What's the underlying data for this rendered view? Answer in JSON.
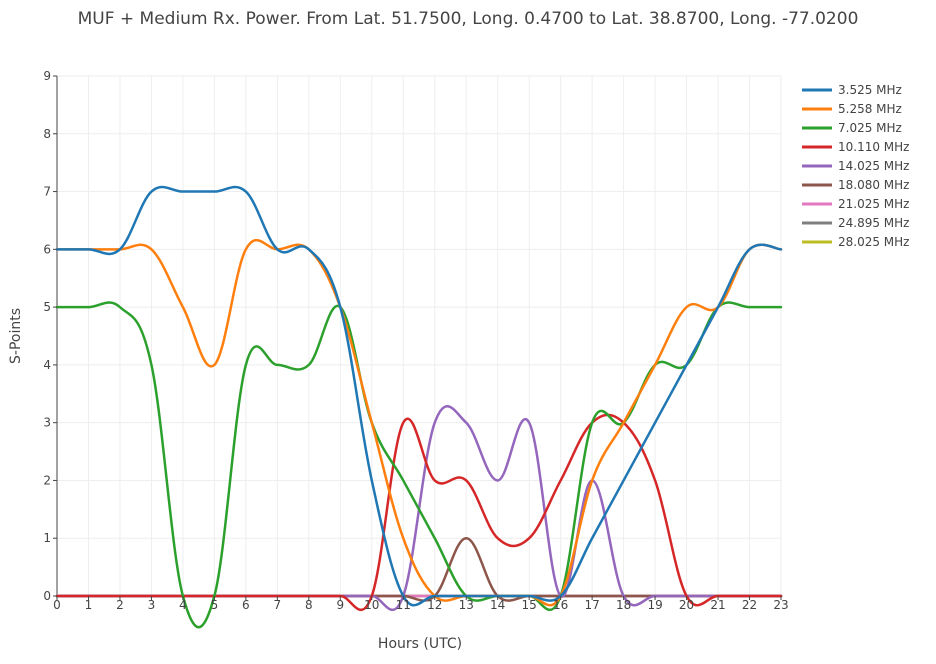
{
  "chart_data": {
    "type": "line",
    "title": "MUF + Medium Rx. Power. From Lat. 51.7500, Long. 0.4700 to Lat. 38.8700, Long. -77.0200",
    "xlabel": "Hours (UTC)",
    "ylabel": "S-Points",
    "xlim": [
      0,
      23
    ],
    "ylim": [
      0,
      9
    ],
    "grid": true,
    "legend_position": "right",
    "x": [
      0,
      1,
      2,
      3,
      4,
      5,
      6,
      7,
      8,
      9,
      10,
      11,
      12,
      13,
      14,
      15,
      16,
      17,
      18,
      19,
      20,
      21,
      22,
      23
    ],
    "series": [
      {
        "name": "3.525 MHz",
        "color": "#1f77b4",
        "values": [
          6,
          6,
          6,
          7,
          7,
          7,
          7,
          6,
          6,
          5,
          2,
          0,
          0,
          0,
          0,
          0,
          0,
          1,
          2,
          3,
          4,
          5,
          6,
          6
        ]
      },
      {
        "name": "5.258 MHz",
        "color": "#ff7f0e",
        "values": [
          6,
          6,
          6,
          6,
          5,
          4,
          6,
          6,
          6,
          5,
          3,
          1,
          0,
          0,
          0,
          0,
          0,
          2,
          3,
          4,
          5,
          5,
          6,
          6
        ]
      },
      {
        "name": "7.025 MHz",
        "color": "#2ca02c",
        "values": [
          5,
          5,
          5,
          4,
          0,
          0,
          4,
          4,
          4,
          5,
          3,
          2,
          1,
          0,
          0,
          0,
          0,
          3,
          3,
          4,
          4,
          5,
          5,
          5
        ]
      },
      {
        "name": "10.110 MHz",
        "color": "#d62728",
        "values": [
          0,
          0,
          0,
          0,
          0,
          0,
          0,
          0,
          0,
          0,
          0,
          3,
          2,
          2,
          1,
          1,
          2,
          3,
          3,
          2,
          0,
          0,
          0,
          0
        ]
      },
      {
        "name": "14.025 MHz",
        "color": "#9467bd",
        "values": [
          0,
          0,
          0,
          0,
          0,
          0,
          0,
          0,
          0,
          0,
          0,
          0,
          3,
          3,
          2,
          3,
          0,
          2,
          0,
          0,
          0,
          0,
          0,
          0
        ]
      },
      {
        "name": "18.080 MHz",
        "color": "#8c564b",
        "values": [
          0,
          0,
          0,
          0,
          0,
          0,
          0,
          0,
          0,
          0,
          0,
          0,
          0,
          1,
          0,
          0,
          0,
          0,
          0,
          0,
          0,
          0,
          0,
          0
        ]
      },
      {
        "name": "21.025 MHz",
        "color": "#e377c2",
        "values": [
          0,
          0,
          0,
          0,
          0,
          0,
          0,
          0,
          0,
          0,
          0,
          0,
          0,
          0,
          0,
          0,
          0,
          0,
          0,
          0,
          0,
          0,
          0,
          0
        ]
      },
      {
        "name": "24.895 MHz",
        "color": "#7f7f7f",
        "values": [
          0,
          0,
          0,
          0,
          0,
          0,
          0,
          0,
          0,
          0,
          0,
          0,
          0,
          0,
          0,
          0,
          0,
          0,
          0,
          0,
          0,
          0,
          0,
          0
        ]
      },
      {
        "name": "28.025 MHz",
        "color": "#bcbd22",
        "values": [
          0,
          0,
          0,
          0,
          0,
          0,
          0,
          0,
          0,
          0,
          0,
          0,
          0,
          0,
          0,
          0,
          0,
          0,
          0,
          0,
          0,
          0,
          0,
          0
        ]
      }
    ]
  }
}
